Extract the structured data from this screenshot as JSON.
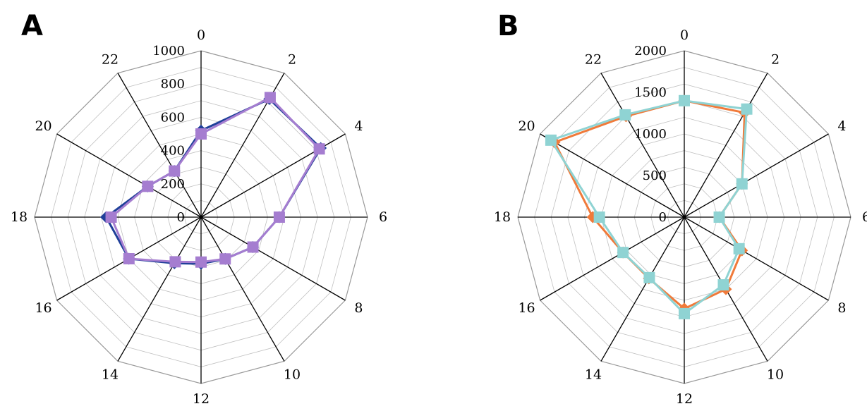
{
  "colors": {
    "a_series_1": "#1f3f99",
    "a_series_2": "#a57dd0",
    "b_series_1": "#f07a3a",
    "b_series_2": "#8fd3d3",
    "grid": "#c0c0c0",
    "axis": "#000000"
  },
  "chart_data": [
    {
      "type": "radar",
      "panel_label": "A",
      "categories": [
        "0",
        "2",
        "4",
        "6",
        "8",
        "10",
        "12",
        "14",
        "16",
        "18",
        "20",
        "22"
      ],
      "ylim": [
        0,
        1000
      ],
      "ticks": [
        "0",
        "200",
        "400",
        "600",
        "800",
        "1000"
      ],
      "tick_values": [
        0,
        200,
        400,
        600,
        800,
        1000
      ],
      "grid_levels": 10,
      "series": [
        {
          "values": [
            520,
            820,
            830,
            470,
            360,
            290,
            280,
            320,
            500,
            570,
            370,
            320
          ]
        },
        {
          "values": [
            500,
            830,
            820,
            470,
            360,
            290,
            270,
            310,
            500,
            540,
            370,
            320
          ]
        }
      ]
    },
    {
      "type": "radar",
      "panel_label": "B",
      "categories": [
        "0",
        "2",
        "4",
        "6",
        "8",
        "10",
        "12",
        "14",
        "16",
        "18",
        "20",
        "22"
      ],
      "ylim": [
        0,
        2000
      ],
      "ticks": [
        "0",
        "500",
        "1000",
        "1500",
        "2000"
      ],
      "tick_values": [
        0,
        500,
        1000,
        1500,
        2000
      ],
      "grid_levels": 10,
      "series": [
        {
          "values": [
            1400,
            1450,
            800,
            420,
            800,
            1000,
            1100,
            850,
            850,
            1100,
            1800,
            1400
          ]
        },
        {
          "values": [
            1400,
            1500,
            800,
            420,
            760,
            940,
            1160,
            840,
            850,
            1020,
            1850,
            1420
          ]
        }
      ]
    }
  ]
}
